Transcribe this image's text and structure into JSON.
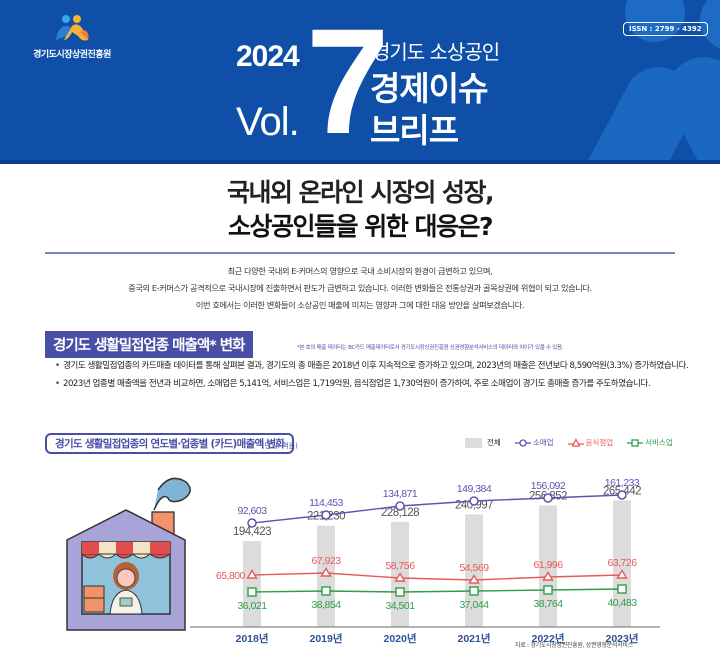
{
  "header": {
    "org_name": "경기도시장상권진흥원",
    "year": "2024",
    "vol_label": "Vol.",
    "vol_number": "7",
    "subtitle_small": "경기도 소상공인",
    "subtitle_big_1": "경제이슈",
    "subtitle_big_2": "브리프",
    "issn": "ISSN : 2799 - 4392",
    "colors": {
      "banner": "#0f4fa8",
      "accent_shape": "#1b68c0"
    }
  },
  "title": {
    "line1": "국내외 온라인 시장의 성장,",
    "line2": "소상공인들을 위한 대응은?"
  },
  "intro": {
    "lines": [
      "최근 다양한 국내외 E-커머스의 영향으로 국내 소비시장의 환경이 급변하고 있으며,",
      "중국의 E-커머스가 공격적으로 국내시장에 진출하면서 판도가 급변하고 있습니다. 이러한 변화들은 전통상권과 골목상권에 위협이 되고 있습니다.",
      "이번 호에서는 이러한 변화들이 소상공인 매출에 미치는 영향과 그에 대한 대응 방안을 살펴보겠습니다."
    ]
  },
  "section1": {
    "heading": "경기도 생활밀접업종 매출액* 변화",
    "footnote": "*본 호의 매출 데이터는 BC카드 매출데이터로서 경기도시장상권진흥원 상권영향분석서비스의 데이터와 차이가 있을 수 있음.",
    "bullets": [
      "경기도 생활밀접업종의 카드매출 데이터를 통해 살펴본 결과, 경기도의 총 매출은 2018년 이후 지속적으로 증가하고 있으며, 2023년의 매출은 전년보다 8,590억원(3.3%) 증가하였습니다.",
      "2023년 업종별 매출액을 전년과 비교하면, 소매업은 5,141억, 서비스업은 1,719억원, 음식점업은 1,730억원이 증가하여, 주로 소매업이 경기도 총매출 증가를 주도하였습니다."
    ],
    "colors": {
      "heading_bg": "#4a4fa6"
    }
  },
  "chart_header": {
    "title": "경기도 생활밀접업종의 연도별·업종별 (카드)매출액 변화",
    "unit": "(단위: 억원)",
    "legend": [
      {
        "label": "전체",
        "marker": "bar",
        "color": "#dcdcdc"
      },
      {
        "label": "소매업",
        "marker": "circle",
        "color": "#5a56b0"
      },
      {
        "label": "음식점업",
        "marker": "triangle",
        "color": "#e85a5a"
      },
      {
        "label": "서비스업",
        "marker": "square",
        "color": "#2e9e4a"
      }
    ]
  },
  "chart_data": {
    "type": "bar",
    "title": "경기도 생활밀접업종의 연도별·업종별 (카드)매출액 변화",
    "unit": "억원",
    "categories": [
      "2018년",
      "2019년",
      "2020년",
      "2021년",
      "2022년",
      "2023년"
    ],
    "series": [
      {
        "name": "전체",
        "type": "bar",
        "color": "#dcdcdc",
        "values": [
          194423,
          221230,
          228128,
          240997,
          256852,
          265442
        ],
        "labels": [
          "194,423",
          "221,230",
          "228,128",
          "240,997",
          "256,852",
          "265,442"
        ]
      },
      {
        "name": "소매업",
        "type": "line",
        "marker": "circle",
        "color": "#5a56b0",
        "values": [
          92603,
          114453,
          134871,
          149384,
          156092,
          161233
        ],
        "labels": [
          "92,603",
          "114,453",
          "134,871",
          "149,384",
          "156,092",
          "161,233"
        ]
      },
      {
        "name": "음식점업",
        "type": "line",
        "marker": "triangle",
        "color": "#e85a5a",
        "values": [
          65800,
          67923,
          58756,
          54569,
          61996,
          63726
        ],
        "labels": [
          "65,800",
          "67,923",
          "58,756",
          "54,569",
          "61,996",
          "63,726"
        ]
      },
      {
        "name": "서비스업",
        "type": "line",
        "marker": "square",
        "color": "#2e9e4a",
        "values": [
          36021,
          38854,
          34501,
          37044,
          38764,
          40483
        ],
        "labels": [
          "36,021",
          "38,854",
          "34,501",
          "37,044",
          "38,764",
          "40,483"
        ]
      }
    ],
    "xlabel": "",
    "ylabel": "",
    "grid": false,
    "legend_position": "top-right"
  },
  "source": "자료 : 경기도시장상권진흥원, 상권영향분석서비스"
}
